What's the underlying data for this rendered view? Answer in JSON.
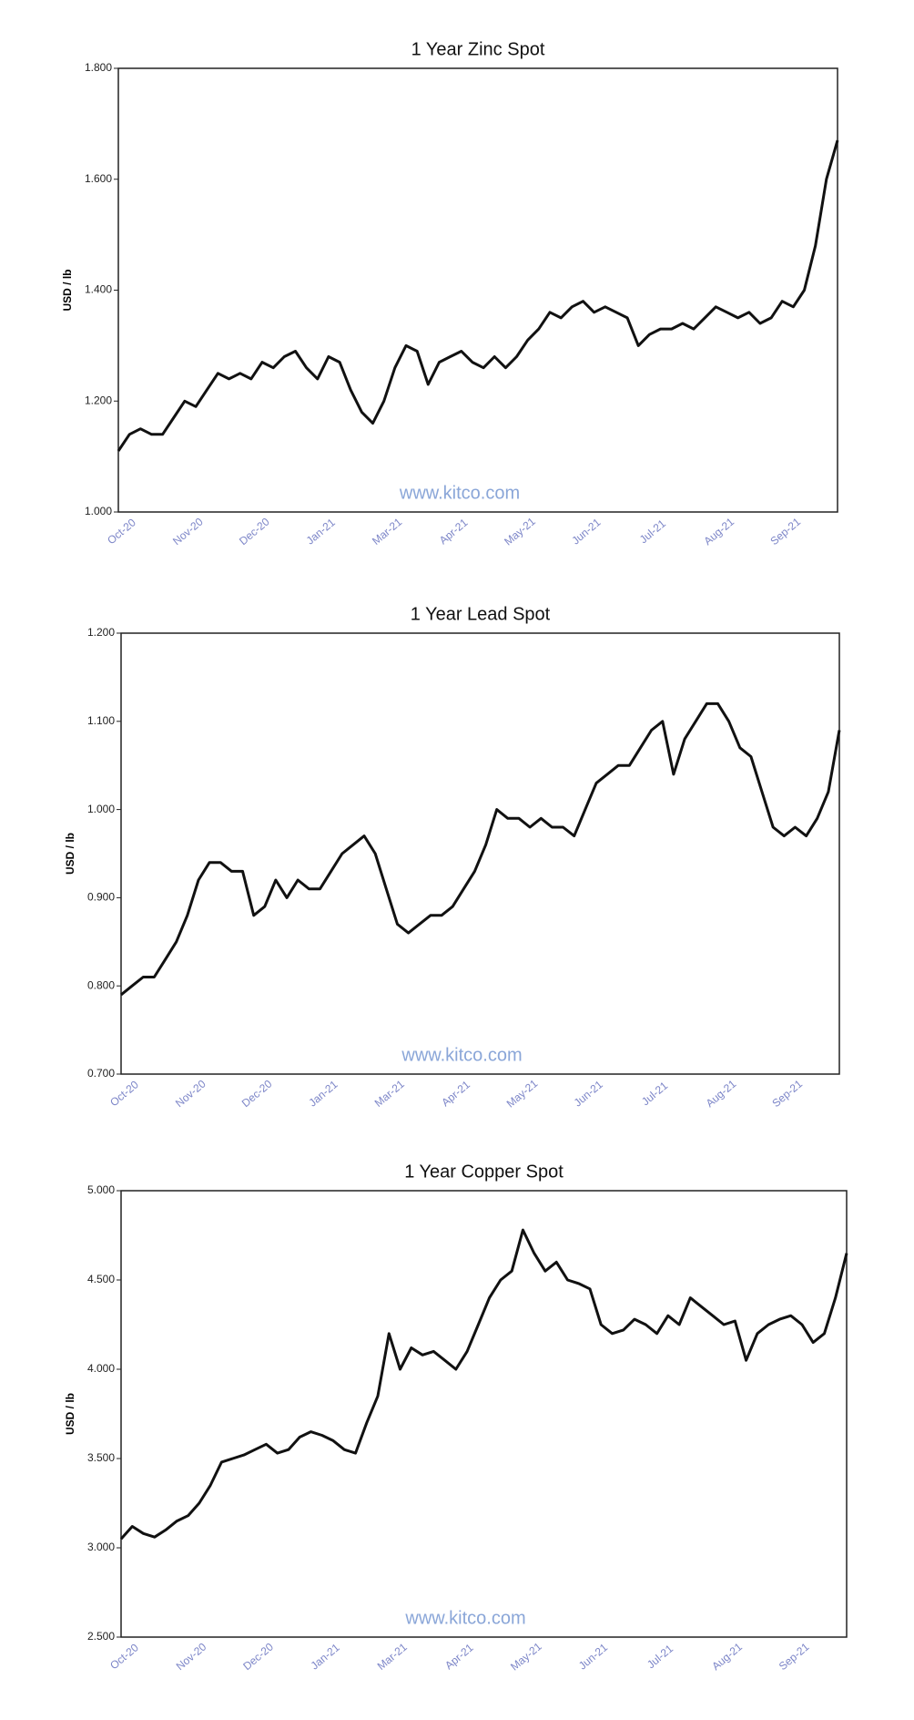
{
  "chart_data": [
    {
      "type": "line",
      "title": "1 Year Zinc Spot",
      "ylabel": "USD / lb",
      "watermark": "www.kitco.com",
      "categories": [
        "Oct-20",
        null,
        null,
        null,
        null,
        null,
        "Nov-20",
        null,
        null,
        null,
        null,
        null,
        "Dec-20",
        null,
        null,
        null,
        null,
        null,
        "Jan-21",
        null,
        null,
        null,
        null,
        null,
        "Mar-21",
        null,
        null,
        null,
        null,
        null,
        "Apr-21",
        null,
        null,
        null,
        null,
        null,
        "May-21",
        null,
        null,
        null,
        null,
        null,
        "Jun-21",
        null,
        null,
        null,
        null,
        null,
        "Jul-21",
        null,
        null,
        null,
        null,
        null,
        "Aug-21",
        null,
        null,
        null,
        null,
        null,
        "Sep-21",
        null,
        null,
        null,
        null,
        null
      ],
      "series": [
        {
          "name": "Zinc",
          "color": "#111111",
          "values": [
            1.11,
            1.14,
            1.15,
            1.14,
            1.14,
            1.17,
            1.2,
            1.19,
            1.22,
            1.25,
            1.24,
            1.25,
            1.24,
            1.27,
            1.26,
            1.28,
            1.29,
            1.26,
            1.24,
            1.28,
            1.27,
            1.22,
            1.18,
            1.16,
            1.2,
            1.26,
            1.3,
            1.29,
            1.23,
            1.27,
            1.28,
            1.29,
            1.27,
            1.26,
            1.28,
            1.26,
            1.28,
            1.31,
            1.33,
            1.36,
            1.35,
            1.37,
            1.38,
            1.36,
            1.37,
            1.36,
            1.35,
            1.3,
            1.32,
            1.33,
            1.33,
            1.34,
            1.33,
            1.35,
            1.37,
            1.36,
            1.35,
            1.36,
            1.34,
            1.35,
            1.38,
            1.37,
            1.4,
            1.48,
            1.6,
            1.67
          ]
        }
      ],
      "ylim": [
        1.0,
        1.8
      ],
      "yticks": [
        {
          "value": 1.0,
          "label": "1.000"
        },
        {
          "value": 1.2,
          "label": "1.200"
        },
        {
          "value": 1.4,
          "label": "1.400"
        },
        {
          "value": 1.6,
          "label": "1.600"
        },
        {
          "value": 1.8,
          "label": "1.800"
        }
      ],
      "grid": false
    },
    {
      "type": "line",
      "title": "1 Year Lead Spot",
      "ylabel": "USD / lb",
      "watermark": "www.kitco.com",
      "categories": [
        "Oct-20",
        null,
        null,
        null,
        null,
        null,
        "Nov-20",
        null,
        null,
        null,
        null,
        null,
        "Dec-20",
        null,
        null,
        null,
        null,
        null,
        "Jan-21",
        null,
        null,
        null,
        null,
        null,
        "Mar-21",
        null,
        null,
        null,
        null,
        null,
        "Apr-21",
        null,
        null,
        null,
        null,
        null,
        "May-21",
        null,
        null,
        null,
        null,
        null,
        "Jun-21",
        null,
        null,
        null,
        null,
        null,
        "Jul-21",
        null,
        null,
        null,
        null,
        null,
        "Aug-21",
        null,
        null,
        null,
        null,
        null,
        "Sep-21",
        null,
        null,
        null,
        null,
        null
      ],
      "series": [
        {
          "name": "Lead",
          "color": "#111111",
          "values": [
            0.79,
            0.8,
            0.81,
            0.81,
            0.83,
            0.85,
            0.88,
            0.92,
            0.94,
            0.94,
            0.93,
            0.93,
            0.88,
            0.89,
            0.92,
            0.9,
            0.92,
            0.91,
            0.91,
            0.93,
            0.95,
            0.96,
            0.97,
            0.95,
            0.91,
            0.87,
            0.86,
            0.87,
            0.88,
            0.88,
            0.89,
            0.91,
            0.93,
            0.96,
            1.0,
            0.99,
            0.99,
            0.98,
            0.99,
            0.98,
            0.98,
            0.97,
            1.0,
            1.03,
            1.04,
            1.05,
            1.05,
            1.07,
            1.09,
            1.1,
            1.04,
            1.08,
            1.1,
            1.12,
            1.12,
            1.1,
            1.07,
            1.06,
            1.02,
            0.98,
            0.97,
            0.98,
            0.97,
            0.99,
            1.02,
            1.09
          ]
        }
      ],
      "ylim": [
        0.7,
        1.2
      ],
      "yticks": [
        {
          "value": 0.7,
          "label": "0.700"
        },
        {
          "value": 0.8,
          "label": "0.800"
        },
        {
          "value": 0.9,
          "label": "0.900"
        },
        {
          "value": 1.0,
          "label": "1.000"
        },
        {
          "value": 1.1,
          "label": "1.100"
        },
        {
          "value": 1.2,
          "label": "1.200"
        }
      ],
      "grid": false
    },
    {
      "type": "line",
      "title": "1 Year Copper Spot",
      "ylabel": "USD / lb",
      "watermark": "www.kitco.com",
      "categories": [
        "Oct-20",
        null,
        null,
        null,
        null,
        null,
        "Nov-20",
        null,
        null,
        null,
        null,
        null,
        "Dec-20",
        null,
        null,
        null,
        null,
        null,
        "Jan-21",
        null,
        null,
        null,
        null,
        null,
        "Mar-21",
        null,
        null,
        null,
        null,
        null,
        "Apr-21",
        null,
        null,
        null,
        null,
        null,
        "May-21",
        null,
        null,
        null,
        null,
        null,
        "Jun-21",
        null,
        null,
        null,
        null,
        null,
        "Jul-21",
        null,
        null,
        null,
        null,
        null,
        "Aug-21",
        null,
        null,
        null,
        null,
        null,
        "Sep-21",
        null,
        null,
        null,
        null,
        null
      ],
      "series": [
        {
          "name": "Copper",
          "color": "#111111",
          "values": [
            3.05,
            3.12,
            3.08,
            3.06,
            3.1,
            3.15,
            3.18,
            3.25,
            3.35,
            3.48,
            3.5,
            3.52,
            3.55,
            3.58,
            3.53,
            3.55,
            3.62,
            3.65,
            3.63,
            3.6,
            3.55,
            3.53,
            3.7,
            3.85,
            4.2,
            4.0,
            4.12,
            4.08,
            4.1,
            4.05,
            4.0,
            4.1,
            4.25,
            4.4,
            4.5,
            4.55,
            4.78,
            4.65,
            4.55,
            4.6,
            4.5,
            4.48,
            4.45,
            4.25,
            4.2,
            4.22,
            4.28,
            4.25,
            4.2,
            4.3,
            4.25,
            4.4,
            4.35,
            4.3,
            4.25,
            4.27,
            4.05,
            4.2,
            4.25,
            4.28,
            4.3,
            4.25,
            4.15,
            4.2,
            4.4,
            4.65
          ]
        }
      ],
      "ylim": [
        2.5,
        5.0
      ],
      "yticks": [
        {
          "value": 2.5,
          "label": "2.500"
        },
        {
          "value": 3.0,
          "label": "3.000"
        },
        {
          "value": 3.5,
          "label": "3.500"
        },
        {
          "value": 4.0,
          "label": "4.000"
        },
        {
          "value": 4.5,
          "label": "4.500"
        },
        {
          "value": 5.0,
          "label": "5.000"
        }
      ],
      "grid": false
    }
  ]
}
